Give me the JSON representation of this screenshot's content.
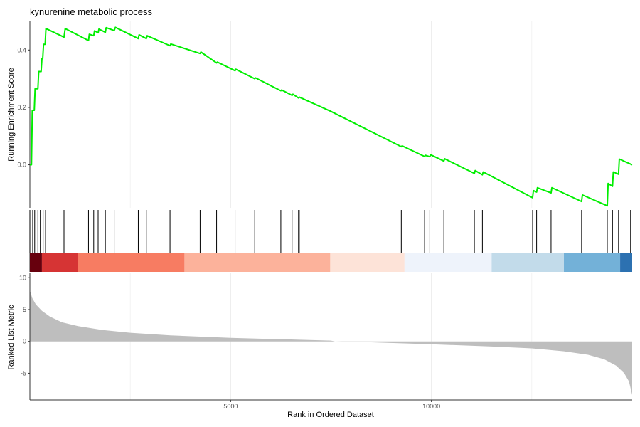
{
  "chart_data": {
    "type": "line",
    "title": "kynurenine metabolic process",
    "xlabel": "Rank in Ordered Dataset",
    "xlim": [
      0,
      15000
    ],
    "x_ticks": [
      "5000",
      "10000"
    ],
    "x_tick_values": [
      5000,
      10000
    ],
    "grid": true,
    "panels": [
      {
        "name": "running_enrichment_score",
        "ylabel": "Running Enrichment Score",
        "ylim": [
          -0.15,
          0.5
        ],
        "y_ticks": [
          "0.0",
          "0.2",
          "0.4"
        ],
        "y_tick_values": [
          0.0,
          0.2,
          0.4
        ],
        "line_color": "#00ee00",
        "points": [
          [
            0,
            0.0
          ],
          [
            40,
            0.0
          ],
          [
            60,
            0.19
          ],
          [
            110,
            0.19
          ],
          [
            130,
            0.265
          ],
          [
            200,
            0.265
          ],
          [
            220,
            0.325
          ],
          [
            280,
            0.325
          ],
          [
            300,
            0.37
          ],
          [
            320,
            0.37
          ],
          [
            340,
            0.42
          ],
          [
            380,
            0.42
          ],
          [
            400,
            0.475
          ],
          [
            850,
            0.445
          ],
          [
            880,
            0.475
          ],
          [
            1460,
            0.433
          ],
          [
            1480,
            0.455
          ],
          [
            1590,
            0.45
          ],
          [
            1610,
            0.467
          ],
          [
            1700,
            0.46
          ],
          [
            1720,
            0.473
          ],
          [
            1880,
            0.462
          ],
          [
            1900,
            0.478
          ],
          [
            2100,
            0.468
          ],
          [
            2130,
            0.479
          ],
          [
            2700,
            0.44
          ],
          [
            2720,
            0.453
          ],
          [
            2900,
            0.44
          ],
          [
            2920,
            0.45
          ],
          [
            3490,
            0.415
          ],
          [
            3510,
            0.421
          ],
          [
            4240,
            0.388
          ],
          [
            4260,
            0.393
          ],
          [
            4650,
            0.355
          ],
          [
            4670,
            0.358
          ],
          [
            5110,
            0.328
          ],
          [
            5130,
            0.333
          ],
          [
            5600,
            0.3
          ],
          [
            5620,
            0.303
          ],
          [
            6250,
            0.258
          ],
          [
            6270,
            0.261
          ],
          [
            6530,
            0.242
          ],
          [
            6550,
            0.246
          ],
          [
            6690,
            0.233
          ],
          [
            6710,
            0.236
          ],
          [
            7500,
            0.186
          ],
          [
            9250,
            0.063
          ],
          [
            9270,
            0.066
          ],
          [
            9830,
            0.029
          ],
          [
            9850,
            0.033
          ],
          [
            9960,
            0.028
          ],
          [
            9980,
            0.035
          ],
          [
            10310,
            0.013
          ],
          [
            10330,
            0.021
          ],
          [
            11070,
            -0.03
          ],
          [
            11090,
            -0.02
          ],
          [
            11270,
            -0.035
          ],
          [
            11290,
            -0.025
          ],
          [
            12520,
            -0.115
          ],
          [
            12540,
            -0.09
          ],
          [
            12620,
            -0.095
          ],
          [
            12640,
            -0.08
          ],
          [
            12980,
            -0.098
          ],
          [
            13000,
            -0.08
          ],
          [
            13740,
            -0.128
          ],
          [
            13760,
            -0.105
          ],
          [
            14380,
            -0.143
          ],
          [
            14400,
            -0.065
          ],
          [
            14510,
            -0.075
          ],
          [
            14530,
            -0.025
          ],
          [
            14660,
            -0.033
          ],
          [
            14680,
            0.02
          ],
          [
            15000,
            0.0
          ]
        ]
      },
      {
        "name": "gene_hits",
        "hit_positions": [
          0,
          70,
          120,
          200,
          260,
          330,
          390,
          850,
          1460,
          1590,
          1700,
          1880,
          2100,
          2700,
          2900,
          3490,
          4240,
          4650,
          5110,
          5600,
          6250,
          6530,
          6690,
          6710,
          9250,
          9830,
          9960,
          10310,
          11070,
          11270,
          12520,
          12620,
          12980,
          13740,
          14380,
          14510,
          14660,
          14960
        ],
        "color_band": [
          {
            "from": 0,
            "to": 300,
            "color": "#67000d"
          },
          {
            "from": 300,
            "to": 1200,
            "color": "#d63434"
          },
          {
            "from": 1200,
            "to": 3850,
            "color": "#f77c62"
          },
          {
            "from": 3850,
            "to": 7480,
            "color": "#fcb29b"
          },
          {
            "from": 7480,
            "to": 9330,
            "color": "#fde3d8"
          },
          {
            "from": 9330,
            "to": 11500,
            "color": "#eef3fb"
          },
          {
            "from": 11500,
            "to": 13300,
            "color": "#c2dbea"
          },
          {
            "from": 13300,
            "to": 14700,
            "color": "#73b1d8"
          },
          {
            "from": 14700,
            "to": 15000,
            "color": "#2c71b1"
          }
        ]
      },
      {
        "name": "ranked_list_metric",
        "ylabel": "Ranked List Metric",
        "ylim": [
          -9.2,
          10.7
        ],
        "y_ticks": [
          "10",
          "5",
          "0",
          "-5"
        ],
        "y_tick_values": [
          10,
          5,
          0,
          -5
        ],
        "area_color": "#bebebe",
        "profile": [
          [
            0,
            8.0
          ],
          [
            60,
            6.8
          ],
          [
            150,
            5.8
          ],
          [
            300,
            4.8
          ],
          [
            500,
            3.9
          ],
          [
            800,
            3.0
          ],
          [
            1200,
            2.4
          ],
          [
            1800,
            1.8
          ],
          [
            2500,
            1.35
          ],
          [
            3500,
            0.95
          ],
          [
            5000,
            0.55
          ],
          [
            6500,
            0.3
          ],
          [
            7500,
            0.12
          ],
          [
            7600,
            0.0
          ],
          [
            8500,
            -0.15
          ],
          [
            10000,
            -0.45
          ],
          [
            11500,
            -0.8
          ],
          [
            12500,
            -1.1
          ],
          [
            13300,
            -1.55
          ],
          [
            13900,
            -2.1
          ],
          [
            14300,
            -2.8
          ],
          [
            14600,
            -3.8
          ],
          [
            14800,
            -5.0
          ],
          [
            14920,
            -6.3
          ],
          [
            15000,
            -8.4
          ]
        ]
      }
    ]
  },
  "colors": {
    "axis": "#333333",
    "grid": "#ebebeb",
    "hit_line": "#000000"
  }
}
